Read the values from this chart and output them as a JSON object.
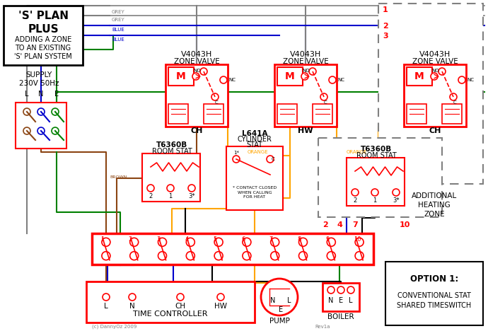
{
  "bg": "#ffffff",
  "RED": "#ff0000",
  "BLUE": "#0000cc",
  "GREEN": "#008000",
  "BROWN": "#8B4513",
  "ORANGE": "#FFA500",
  "GREY": "#808080",
  "BLACK": "#000000",
  "title_lines": [
    "'S' PLAN",
    "PLUS"
  ],
  "subtitle_lines": [
    "ADDING A ZONE",
    "TO AN EXISTING",
    "'S' PLAN SYSTEM"
  ],
  "supply_lines": [
    "SUPPLY",
    "230V 50Hz"
  ],
  "lne": [
    "L",
    "N",
    "E"
  ],
  "valve_labels": [
    "V4043H",
    "ZONE VALVE"
  ],
  "valve_ch": "CH",
  "valve_hw": "HW",
  "stat1_lines": [
    "T6360B",
    "ROOM STAT"
  ],
  "cyl_lines": [
    "L641A",
    "CYLINDER",
    "STAT"
  ],
  "cyl_note": "* CONTACT CLOSED\nWHEN CALLING\nFOR HEAT",
  "stat2_lines": [
    "T6360B",
    "ROOM STAT"
  ],
  "add_zone": [
    "ADDITIONAL",
    "HEATING",
    "ZONE"
  ],
  "numbers_red": [
    "2",
    "4",
    "7",
    "10"
  ],
  "option_lines": [
    "OPTION 1:",
    "",
    "CONVENTIONAL STAT",
    "SHARED TIMESWITCH"
  ],
  "tc_labels": [
    "L",
    "N",
    "CH",
    "HW"
  ],
  "tc_text": "TIME CONTROLLER",
  "pump_label": "PUMP",
  "boiler_label": "BOILER",
  "nel": [
    "N",
    "E",
    "L"
  ],
  "orange_label": "ORANGE",
  "grey_label": "GREY",
  "blue_label": "BLUE",
  "brown_label": "BROWN",
  "copyright": "(c) DannyOz 2009",
  "rev": "Rev1a"
}
